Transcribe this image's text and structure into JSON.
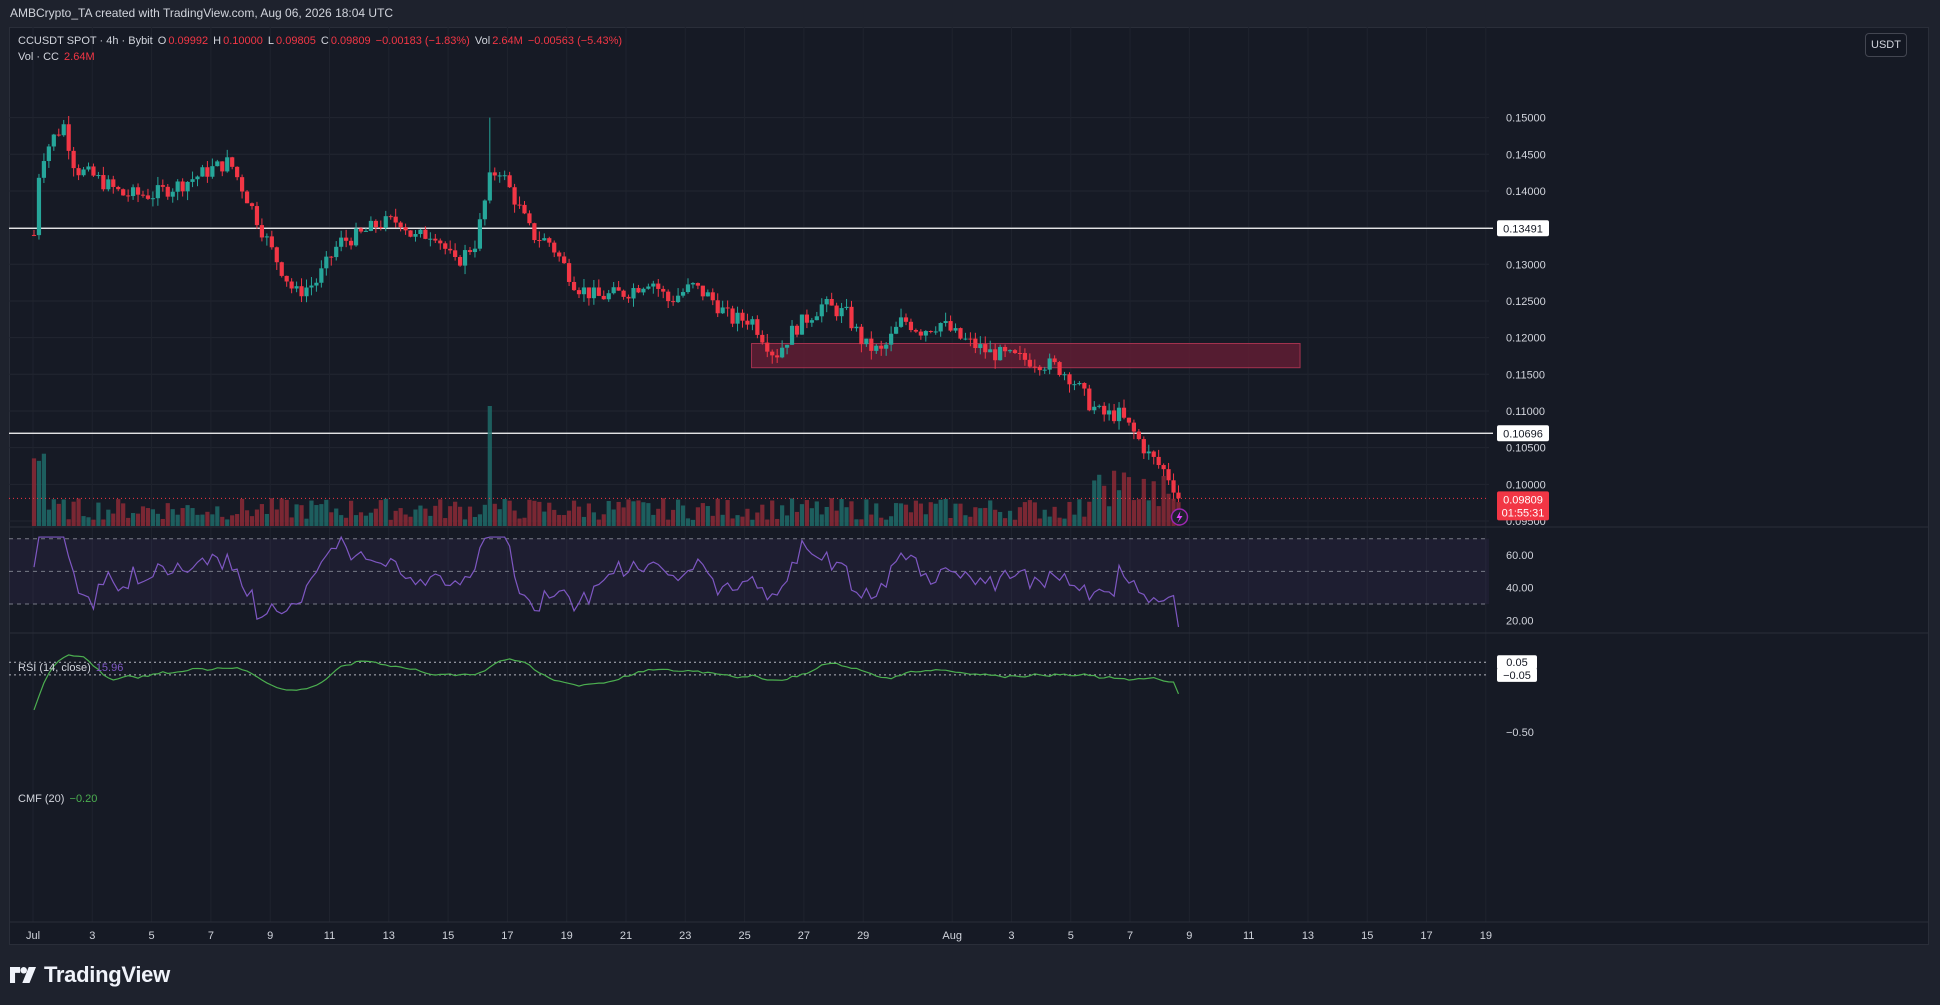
{
  "attribution": "AMBCrypto_TA created with TradingView.com, Aug 06, 2026 18:04 UTC",
  "brand": "TradingView",
  "currency_button": "USDT",
  "legend": {
    "symbol": "CCUSDT SPOT · 4h · Bybit",
    "o_label": "O",
    "o": "0.09992",
    "h_label": "H",
    "h": "0.10000",
    "l_label": "L",
    "l": "0.09805",
    "c_label": "C",
    "c": "0.09809",
    "change": "−0.00183 (−1.83%)",
    "vol_label": "Vol",
    "vol": "2.64M",
    "vol_change": "−0.00563 (−5.43%)",
    "vol_row_label": "Vol · CC",
    "vol_row_value": "2.64M",
    "rsi_label": "RSI (14, close)",
    "rsi_value": "15.96",
    "cmf_label": "CMF (20)",
    "cmf_value": "−0.20"
  },
  "colors": {
    "up": "#26a69a",
    "down": "#f23645",
    "rsi": "#7e57c2",
    "cmf": "#4caf50",
    "zone": "#6b1d35",
    "bg": "#161a25"
  },
  "chart_data": [
    {
      "type": "candlestick",
      "symbol": "CCUSDT SPOT",
      "interval": "4h",
      "exchange": "Bybit",
      "ylim": [
        0.0935,
        0.1524
      ],
      "y_ticks": [
        "0.15000",
        "0.14500",
        "0.14000",
        "0.13500",
        "0.13000",
        "0.12500",
        "0.12000",
        "0.11500",
        "0.11000",
        "0.10500",
        "0.10000",
        "0.09500"
      ],
      "x_ticks": [
        "Jul",
        "3",
        "5",
        "7",
        "9",
        "11",
        "13",
        "15",
        "17",
        "19",
        "21",
        "23",
        "25",
        "27",
        "29",
        "Aug",
        "3",
        "5",
        "7",
        "9",
        "11",
        "13",
        "15",
        "17",
        "19"
      ],
      "horizontal_levels": [
        {
          "value": 0.13491,
          "label": "0.13491"
        },
        {
          "value": 0.10696,
          "label": "0.10696"
        }
      ],
      "last_price": {
        "value": 0.09809,
        "label": "0.09809",
        "countdown": "01:55:31"
      },
      "supply_zone": {
        "from_day": 24.2,
        "to_day": 42.7,
        "low": 0.1159,
        "high": 0.1192
      },
      "close_keypoints": [
        [
          0,
          0.134
        ],
        [
          0.2,
          0.144
        ],
        [
          0.6,
          0.147
        ],
        [
          1.0,
          0.149
        ],
        [
          1.4,
          0.143
        ],
        [
          2.0,
          0.142
        ],
        [
          3.0,
          0.1395
        ],
        [
          4.0,
          0.1395
        ],
        [
          5.0,
          0.141
        ],
        [
          6.0,
          0.143
        ],
        [
          6.6,
          0.144
        ],
        [
          7.2,
          0.139
        ],
        [
          8.0,
          0.132
        ],
        [
          8.8,
          0.126
        ],
        [
          9.5,
          0.1275
        ],
        [
          10.3,
          0.133
        ],
        [
          11.0,
          0.134
        ],
        [
          11.6,
          0.1355
        ],
        [
          12.4,
          0.136
        ],
        [
          12.8,
          0.1335
        ],
        [
          13.5,
          0.1345
        ],
        [
          14.2,
          0.13
        ],
        [
          14.9,
          0.133
        ],
        [
          15.4,
          0.142
        ],
        [
          15.7,
          0.143
        ],
        [
          16.2,
          0.139
        ],
        [
          16.8,
          0.134
        ],
        [
          17.4,
          0.133
        ],
        [
          18.3,
          0.127
        ],
        [
          19.0,
          0.1255
        ],
        [
          20.0,
          0.1262
        ],
        [
          20.8,
          0.128
        ],
        [
          21.4,
          0.125
        ],
        [
          22.2,
          0.127
        ],
        [
          22.8,
          0.1255
        ],
        [
          23.5,
          0.1225
        ],
        [
          24.2,
          0.1225
        ],
        [
          25.0,
          0.1175
        ],
        [
          25.6,
          0.121
        ],
        [
          26.6,
          0.1245
        ],
        [
          27.4,
          0.1232
        ],
        [
          28.0,
          0.119
        ],
        [
          28.6,
          0.118
        ],
        [
          29.3,
          0.1225
        ],
        [
          29.9,
          0.121
        ],
        [
          30.6,
          0.122
        ],
        [
          31.2,
          0.12
        ],
        [
          32.2,
          0.118
        ],
        [
          33.0,
          0.1173
        ],
        [
          33.8,
          0.1168
        ],
        [
          34.5,
          0.116
        ],
        [
          35.0,
          0.1145
        ],
        [
          35.6,
          0.111
        ],
        [
          36.0,
          0.1095
        ],
        [
          36.6,
          0.1095
        ],
        [
          37.1,
          0.107
        ],
        [
          37.6,
          0.104
        ],
        [
          38.2,
          0.1015
        ],
        [
          38.6,
          0.0985
        ]
      ],
      "rsi": {
        "label": "RSI (14, close)",
        "value": 15.96,
        "ylim": [
          13.5,
          73.5
        ],
        "bands": [
          70,
          50,
          30
        ],
        "ticks": [
          "60.00",
          "40.00",
          "20.00"
        ]
      },
      "cmf": {
        "label": "CMF (20)",
        "value": -0.2,
        "ylim": [
          -0.62,
          0.21
        ],
        "bands": [
          0.05,
          -0.05
        ],
        "ticks": [
          "0.05",
          "−0.05",
          "−0.50"
        ]
      },
      "volume": {
        "label": "Vol · CC",
        "value": "2.64M"
      }
    }
  ]
}
